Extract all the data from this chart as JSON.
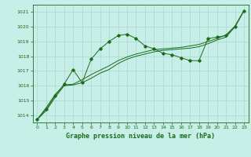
{
  "title": "Graphe pression niveau de la mer (hPa)",
  "background_color": "#c8eee8",
  "grid_color": "#a8d8d0",
  "line_color": "#1a6b1a",
  "xlim": [
    -0.5,
    23.5
  ],
  "ylim": [
    1013.5,
    1021.5
  ],
  "yticks": [
    1014,
    1015,
    1016,
    1017,
    1018,
    1019,
    1020,
    1021
  ],
  "xticks": [
    0,
    1,
    2,
    3,
    4,
    5,
    6,
    7,
    8,
    9,
    10,
    11,
    12,
    13,
    14,
    15,
    16,
    17,
    18,
    19,
    20,
    21,
    22,
    23
  ],
  "line1_x": [
    0,
    1,
    2,
    3,
    4,
    5,
    6,
    7,
    8,
    9,
    10,
    11,
    12,
    13,
    14,
    15,
    16,
    17,
    18,
    19,
    20,
    21,
    22,
    23
  ],
  "line1_y": [
    1013.7,
    1014.4,
    1015.3,
    1016.1,
    1017.1,
    1016.2,
    1017.8,
    1018.5,
    1019.0,
    1019.4,
    1019.5,
    1019.2,
    1018.7,
    1018.5,
    1018.2,
    1018.1,
    1017.9,
    1017.7,
    1017.7,
    1019.2,
    1019.3,
    1019.4,
    1020.0,
    1021.1
  ],
  "line2_x": [
    0,
    1,
    2,
    3,
    4,
    5,
    6,
    7,
    8,
    9,
    10,
    11,
    12,
    13,
    14,
    15,
    16,
    17,
    18,
    19,
    20,
    21,
    22,
    23
  ],
  "line2_y": [
    1013.7,
    1014.5,
    1015.4,
    1016.05,
    1016.1,
    1016.4,
    1016.75,
    1017.05,
    1017.35,
    1017.7,
    1017.95,
    1018.15,
    1018.3,
    1018.45,
    1018.5,
    1018.55,
    1018.6,
    1018.7,
    1018.8,
    1019.0,
    1019.2,
    1019.45,
    1020.05,
    1021.1
  ],
  "line3_x": [
    0,
    1,
    2,
    3,
    4,
    5,
    6,
    7,
    8,
    9,
    10,
    11,
    12,
    13,
    14,
    15,
    16,
    17,
    18,
    19,
    20,
    21,
    22,
    23
  ],
  "line3_y": [
    1013.7,
    1014.3,
    1015.2,
    1016.0,
    1016.05,
    1016.2,
    1016.5,
    1016.85,
    1017.1,
    1017.5,
    1017.8,
    1018.0,
    1018.15,
    1018.3,
    1018.4,
    1018.45,
    1018.5,
    1018.55,
    1018.65,
    1018.85,
    1019.1,
    1019.3,
    1020.0,
    1021.1
  ]
}
